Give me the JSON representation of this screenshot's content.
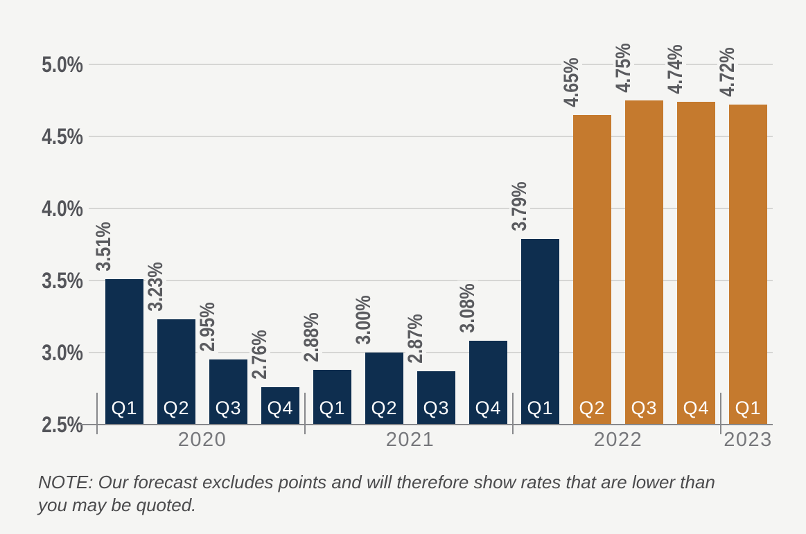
{
  "chart_data": {
    "type": "bar",
    "title": "",
    "xlabel": "",
    "ylabel": "",
    "unit": "%",
    "ylim": [
      2.5,
      5.0
    ],
    "grid": true,
    "legend": false,
    "yticks": [
      {
        "value": 2.5,
        "label": "2.5%"
      },
      {
        "value": 3.0,
        "label": "3.0%"
      },
      {
        "value": 3.5,
        "label": "3.5%"
      },
      {
        "value": 4.0,
        "label": "4.0%"
      },
      {
        "value": 4.5,
        "label": "4.5%"
      },
      {
        "value": 5.0,
        "label": "5.0%"
      }
    ],
    "series_colors": {
      "actual": "#0e2e4f",
      "forecast": "#c57a2e"
    },
    "groups": [
      {
        "year": "2020",
        "bars": [
          {
            "quarter": "Q1",
            "value": 3.51,
            "label": "3.51%",
            "series": "actual"
          },
          {
            "quarter": "Q2",
            "value": 3.23,
            "label": "3.23%",
            "series": "actual"
          },
          {
            "quarter": "Q3",
            "value": 2.95,
            "label": "2.95%",
            "series": "actual"
          },
          {
            "quarter": "Q4",
            "value": 2.76,
            "label": "2.76%",
            "series": "actual"
          }
        ]
      },
      {
        "year": "2021",
        "bars": [
          {
            "quarter": "Q1",
            "value": 2.88,
            "label": "2.88%",
            "series": "actual"
          },
          {
            "quarter": "Q2",
            "value": 3.0,
            "label": "3.00%",
            "series": "actual"
          },
          {
            "quarter": "Q3",
            "value": 2.87,
            "label": "2.87%",
            "series": "actual"
          },
          {
            "quarter": "Q4",
            "value": 3.08,
            "label": "3.08%",
            "series": "actual"
          }
        ]
      },
      {
        "year": "2022",
        "bars": [
          {
            "quarter": "Q1",
            "value": 3.79,
            "label": "3.79%",
            "series": "actual"
          },
          {
            "quarter": "Q2",
            "value": 4.65,
            "label": "4.65%",
            "series": "forecast"
          },
          {
            "quarter": "Q3",
            "value": 4.75,
            "label": "4.75%",
            "series": "forecast"
          },
          {
            "quarter": "Q4",
            "value": 4.74,
            "label": "4.74%",
            "series": "forecast"
          }
        ]
      },
      {
        "year": "2023",
        "bars": [
          {
            "quarter": "Q1",
            "value": 4.72,
            "label": "4.72%",
            "series": "forecast"
          }
        ]
      }
    ]
  },
  "note": {
    "line1": "NOTE: Our forecast excludes points and will therefore show rates that are lower than",
    "line2": "you may be quoted."
  }
}
